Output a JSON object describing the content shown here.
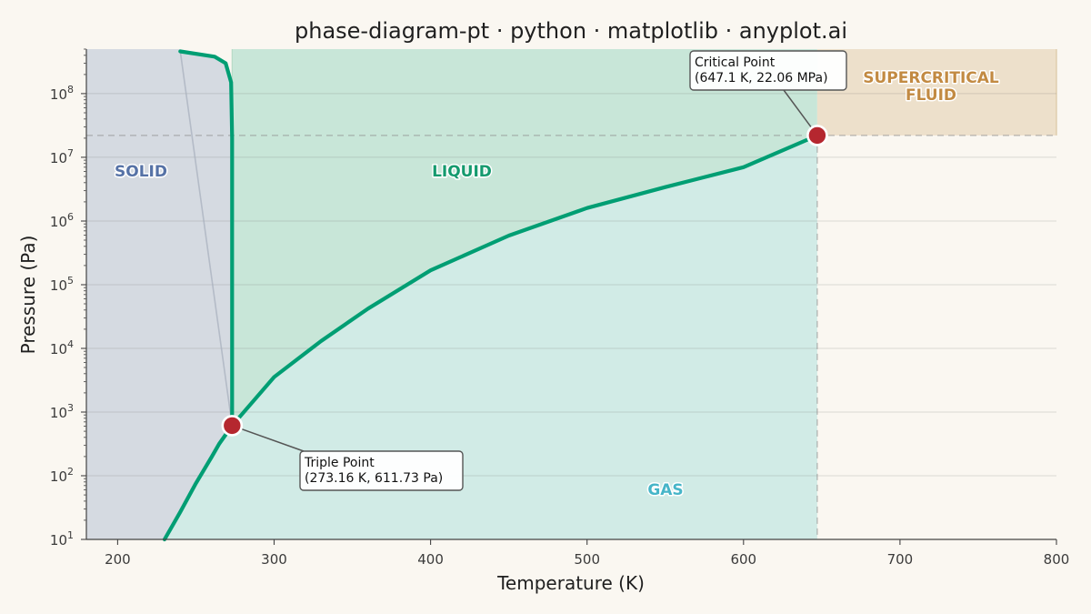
{
  "title": "phase-diagram-pt · python · matplotlib · anyplot.ai",
  "chart_data": {
    "type": "line",
    "title": "phase-diagram-pt · python · matplotlib · anyplot.ai",
    "xlabel": "Temperature (K)",
    "ylabel": "Pressure (Pa)",
    "xlim": [
      180,
      800
    ],
    "ylim": [
      10,
      500000000
    ],
    "y_scale": "log",
    "grid": "horizontal",
    "x_ticks": [
      200,
      300,
      400,
      500,
      600,
      700,
      800
    ],
    "y_ticks": [
      {
        "value": 10,
        "base": "10",
        "exp": "1"
      },
      {
        "value": 100,
        "base": "10",
        "exp": "2"
      },
      {
        "value": 1000,
        "base": "10",
        "exp": "3"
      },
      {
        "value": 10000,
        "base": "10",
        "exp": "4"
      },
      {
        "value": 100000,
        "base": "10",
        "exp": "5"
      },
      {
        "value": 1000000,
        "base": "10",
        "exp": "6"
      },
      {
        "value": 10000000,
        "base": "10",
        "exp": "7"
      },
      {
        "value": 100000000,
        "base": "10",
        "exp": "8"
      }
    ],
    "series": [
      {
        "name": "",
        "role": "sublimation-curve",
        "color": "#009e73",
        "points": [
          [
            230,
            10
          ],
          [
            240,
            27
          ],
          [
            250,
            76
          ],
          [
            260,
            196
          ],
          [
            265,
            320
          ],
          [
            273.16,
            611.73
          ]
        ]
      },
      {
        "name": "",
        "role": "vaporization-curve",
        "color": "#009e73",
        "points": [
          [
            273.16,
            611.73
          ],
          [
            300,
            3540
          ],
          [
            330,
            13000
          ],
          [
            360,
            42000
          ],
          [
            400,
            168000
          ],
          [
            450,
            590000
          ],
          [
            500,
            1600000
          ],
          [
            550,
            3400000
          ],
          [
            600,
            7000000
          ],
          [
            647.1,
            22060000
          ]
        ]
      },
      {
        "name": "",
        "role": "fusion-curve",
        "color": "#009e73",
        "points": [
          [
            273.16,
            611.73
          ],
          [
            273.16,
            20000000
          ],
          [
            272.5,
            150000000
          ],
          [
            269,
            300000000
          ],
          [
            262,
            380000000
          ],
          [
            240,
            460000000
          ]
        ]
      }
    ],
    "triple_point": {
      "x": 273.16,
      "y": 611.73,
      "label_line1": "Triple Point",
      "label_line2": "(273.16 K, 611.73 Pa)"
    },
    "critical_point": {
      "x": 647.1,
      "y": 22060000,
      "label_line1": "Critical Point",
      "label_line2": "(647.1 K, 22.06 MPa)"
    },
    "region_labels": [
      {
        "text": "SOLID",
        "color": "#5672a6"
      },
      {
        "text": "LIQUID",
        "color": "#159a6e"
      },
      {
        "text": "GAS",
        "color": "#46b5c8"
      },
      {
        "text_line1": "SUPERCRITICAL",
        "text_line2": "FLUID",
        "color": "#c28a42"
      }
    ],
    "colors": {
      "curve": "#009e73",
      "point": "#b5272f",
      "solid_fill": "#d5dae1",
      "liquid_fill": "#c8e6d8",
      "gas_fill": "#d1ebe6",
      "supercritical_fill": "#ede0cb",
      "background": "#faf7f1"
    }
  }
}
